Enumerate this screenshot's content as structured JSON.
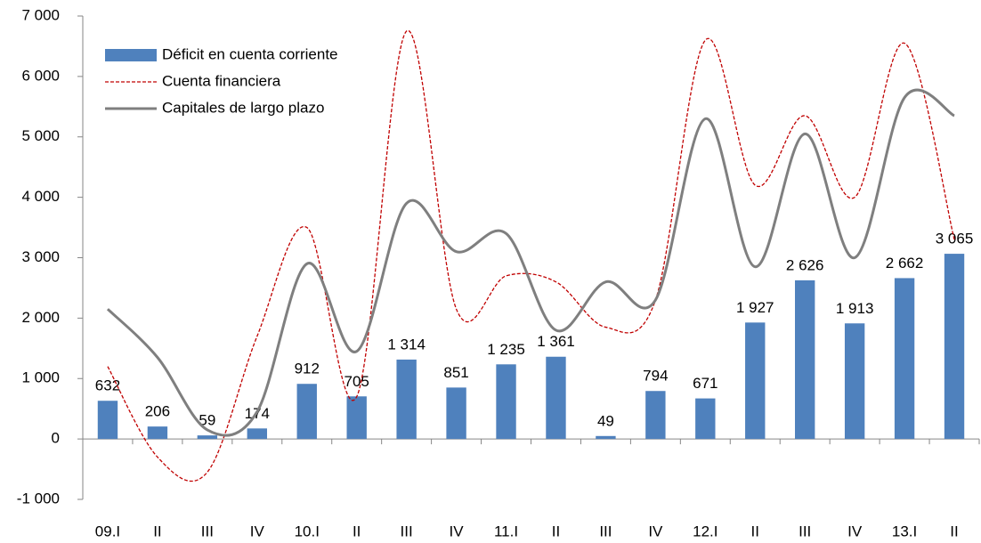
{
  "chart_data": {
    "type": "bar",
    "categories": [
      "09.I",
      "II",
      "III",
      "IV",
      "10.I",
      "II",
      "III",
      "IV",
      "11.I",
      "II",
      "III",
      "IV",
      "12.I",
      "II",
      "III",
      "IV",
      "13.I",
      "II"
    ],
    "series": [
      {
        "name": "Déficit en cuenta corriente",
        "type": "bar",
        "color": "#4f81bd",
        "values": [
          632,
          206,
          59,
          174,
          912,
          705,
          1314,
          851,
          1235,
          1361,
          49,
          794,
          671,
          1927,
          2626,
          1913,
          2662,
          3065
        ],
        "value_labels": [
          "632",
          "206",
          "59",
          "174",
          "912",
          "705",
          "1 314",
          "851",
          "1 235",
          "1 361",
          "49",
          "794",
          "671",
          "1 927",
          "2 626",
          "1 913",
          "2 662",
          "3 065"
        ]
      },
      {
        "name": "Cuenta financiera",
        "type": "line",
        "dashed": true,
        "color": "#c00000",
        "values": [
          1200,
          -300,
          -550,
          1700,
          3500,
          700,
          6750,
          2150,
          2700,
          2600,
          1850,
          2300,
          6600,
          4200,
          5350,
          4000,
          6550,
          3300
        ]
      },
      {
        "name": "Capitales de largo plazo",
        "type": "line",
        "dashed": false,
        "color": "#7f7f7f",
        "values": [
          2150,
          1350,
          150,
          450,
          2900,
          1450,
          3900,
          3100,
          3400,
          1800,
          2600,
          2300,
          5300,
          2850,
          5050,
          3000,
          5650,
          5350
        ]
      }
    ],
    "ylim": [
      -1000,
      7000
    ],
    "yticks": [
      {
        "value": -1000,
        "label": "-1 000"
      },
      0,
      {
        "value": 1000,
        "label": "1 000"
      },
      {
        "value": 2000,
        "label": "2 000"
      },
      {
        "value": 3000,
        "label": "3 000"
      },
      {
        "value": 4000,
        "label": "4 000"
      },
      {
        "value": 5000,
        "label": "5 000"
      },
      {
        "value": 6000,
        "label": "6 000"
      },
      {
        "value": 7000,
        "label": "7 000"
      }
    ],
    "grid": false,
    "legend": "upper left"
  }
}
